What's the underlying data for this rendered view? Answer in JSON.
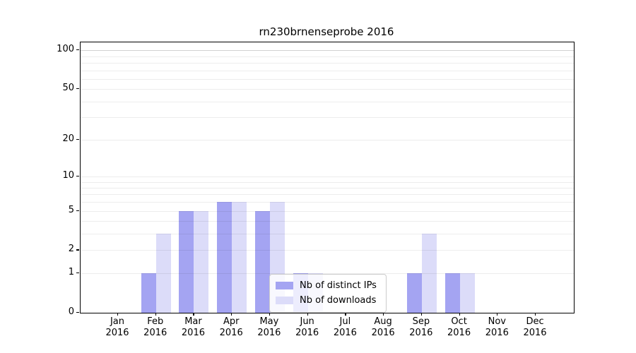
{
  "chart_data": {
    "type": "bar",
    "title": "rn230brnenseprobe 2016",
    "categories": [
      "Jan 2016",
      "Feb 2016",
      "Mar 2016",
      "Apr 2016",
      "May 2016",
      "Jun 2016",
      "Jul 2016",
      "Aug 2016",
      "Sep 2016",
      "Oct 2016",
      "Nov 2016",
      "Dec 2016"
    ],
    "series": [
      {
        "name": "Nb of distinct IPs",
        "color": "#a4a4f2",
        "values": [
          0,
          1,
          5,
          6,
          5,
          1,
          0,
          0,
          1,
          1,
          0,
          0
        ]
      },
      {
        "name": "Nb of downloads",
        "color": "#dcdcf9",
        "values": [
          0,
          3,
          5,
          6,
          6,
          1,
          0,
          0,
          3,
          1,
          0,
          0
        ]
      }
    ],
    "yscale": "log1p",
    "ytick_labels": [
      "0",
      "1",
      "2",
      "5",
      "10",
      "20",
      "50",
      "100"
    ],
    "ytick_values": [
      0,
      1,
      2,
      5,
      10,
      20,
      50,
      100
    ],
    "ylim": [
      0,
      116
    ],
    "xlabel": "",
    "ylabel": "",
    "grid": true,
    "legend_position": "lower center"
  },
  "colors": {
    "grid_minor": "rgba(0,0,0,0.07)",
    "grid_major": "rgba(0,0,0,0.18)",
    "spine": "#000000"
  }
}
